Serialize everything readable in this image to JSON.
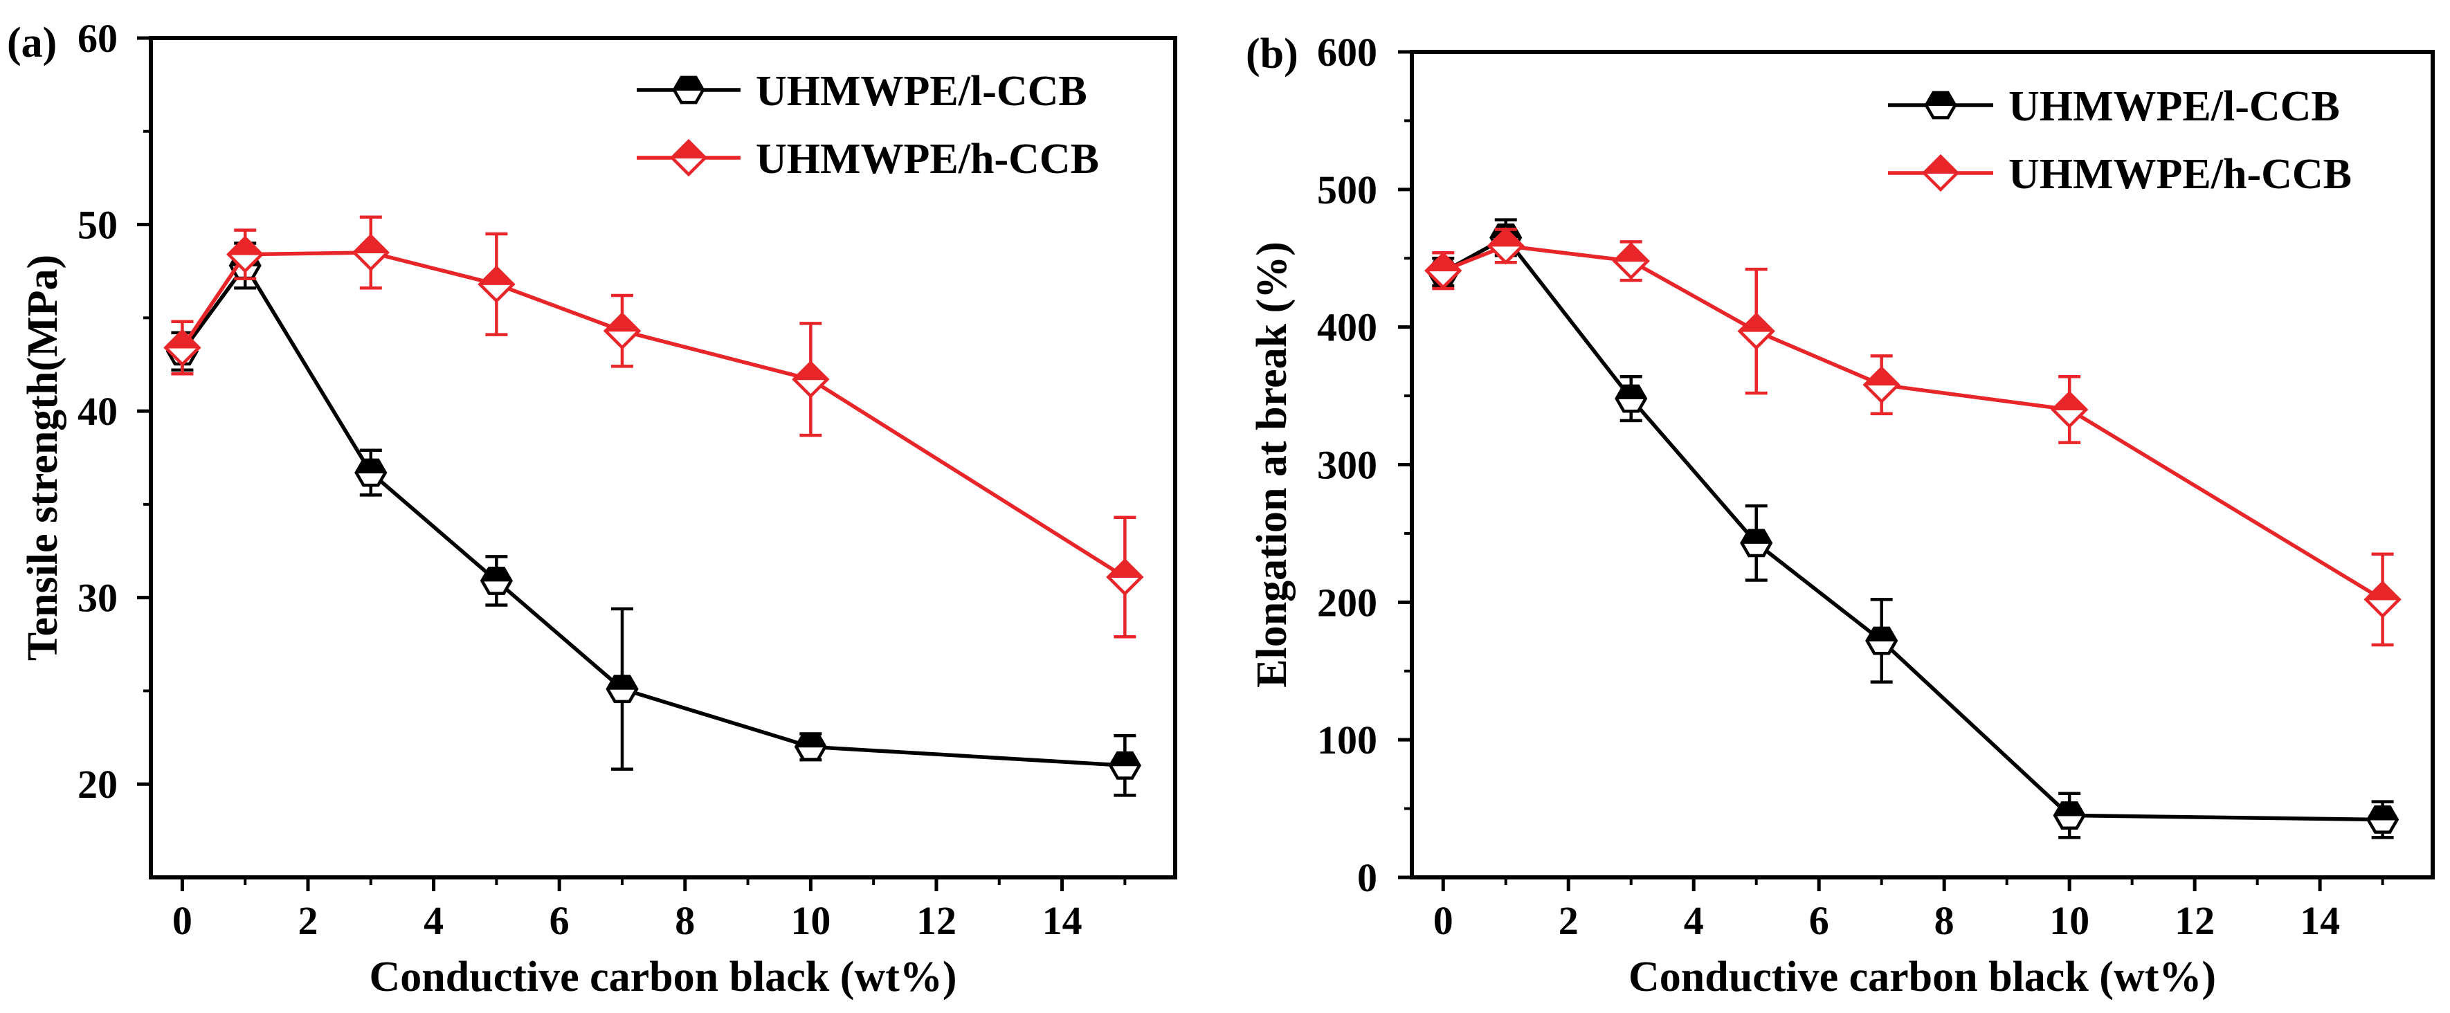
{
  "colors": {
    "series1": "#000000",
    "series2": "#e8262a"
  },
  "chart_data": [
    {
      "panel_label": "(a)",
      "type": "line",
      "xlabel": "Conductive carbon black (wt%)",
      "ylabel": "Tensile strength(MPa)",
      "xlim": [
        -0.5,
        15.8
      ],
      "ylim": [
        15,
        60
      ],
      "xticks": [
        0,
        2,
        4,
        6,
        8,
        10,
        12,
        14
      ],
      "yticks": [
        20,
        30,
        40,
        50,
        60
      ],
      "legend_position": "top-right",
      "series": [
        {
          "name": "UHMWPE/l-CCB",
          "color": "#000000",
          "marker": "hexagon-half-filled",
          "x": [
            0,
            1,
            3,
            5,
            7,
            10,
            15
          ],
          "y": [
            43.2,
            47.8,
            36.7,
            30.9,
            25.1,
            22.0,
            21.0
          ],
          "err": [
            1.0,
            1.2,
            1.2,
            1.3,
            4.3,
            0.7,
            1.6
          ]
        },
        {
          "name": "UHMWPE/h-CCB",
          "color": "#e8262a",
          "marker": "diamond-half-filled",
          "x": [
            0,
            1,
            3,
            5,
            7,
            10,
            15
          ],
          "y": [
            43.4,
            48.4,
            48.5,
            46.8,
            44.3,
            41.7,
            31.1
          ],
          "err": [
            1.4,
            1.3,
            1.9,
            2.7,
            1.9,
            3.0,
            3.2
          ]
        }
      ]
    },
    {
      "panel_label": "(b)",
      "type": "line",
      "xlabel": "Conductive carbon black (wt%)",
      "ylabel": "Elongation at break (%)",
      "xlim": [
        -0.5,
        15.8
      ],
      "ylim": [
        0,
        600
      ],
      "xticks": [
        0,
        2,
        4,
        6,
        8,
        10,
        12,
        14
      ],
      "yticks": [
        0,
        100,
        200,
        300,
        400,
        500,
        600
      ],
      "legend_position": "top-right",
      "series": [
        {
          "name": "UHMWPE/l-CCB",
          "color": "#000000",
          "marker": "hexagon-half-filled",
          "x": [
            0,
            1,
            3,
            5,
            7,
            10,
            15
          ],
          "y": [
            440,
            465,
            348,
            243,
            172,
            45,
            42
          ],
          "err": [
            10,
            13,
            16,
            27,
            30,
            16,
            13
          ]
        },
        {
          "name": "UHMWPE/h-CCB",
          "color": "#e8262a",
          "marker": "diamond-half-filled",
          "x": [
            0,
            1,
            3,
            5,
            7,
            10,
            15
          ],
          "y": [
            441,
            459,
            448,
            397,
            358,
            340,
            202
          ],
          "err": [
            13,
            12,
            14,
            45,
            21,
            24,
            33
          ]
        }
      ]
    }
  ]
}
